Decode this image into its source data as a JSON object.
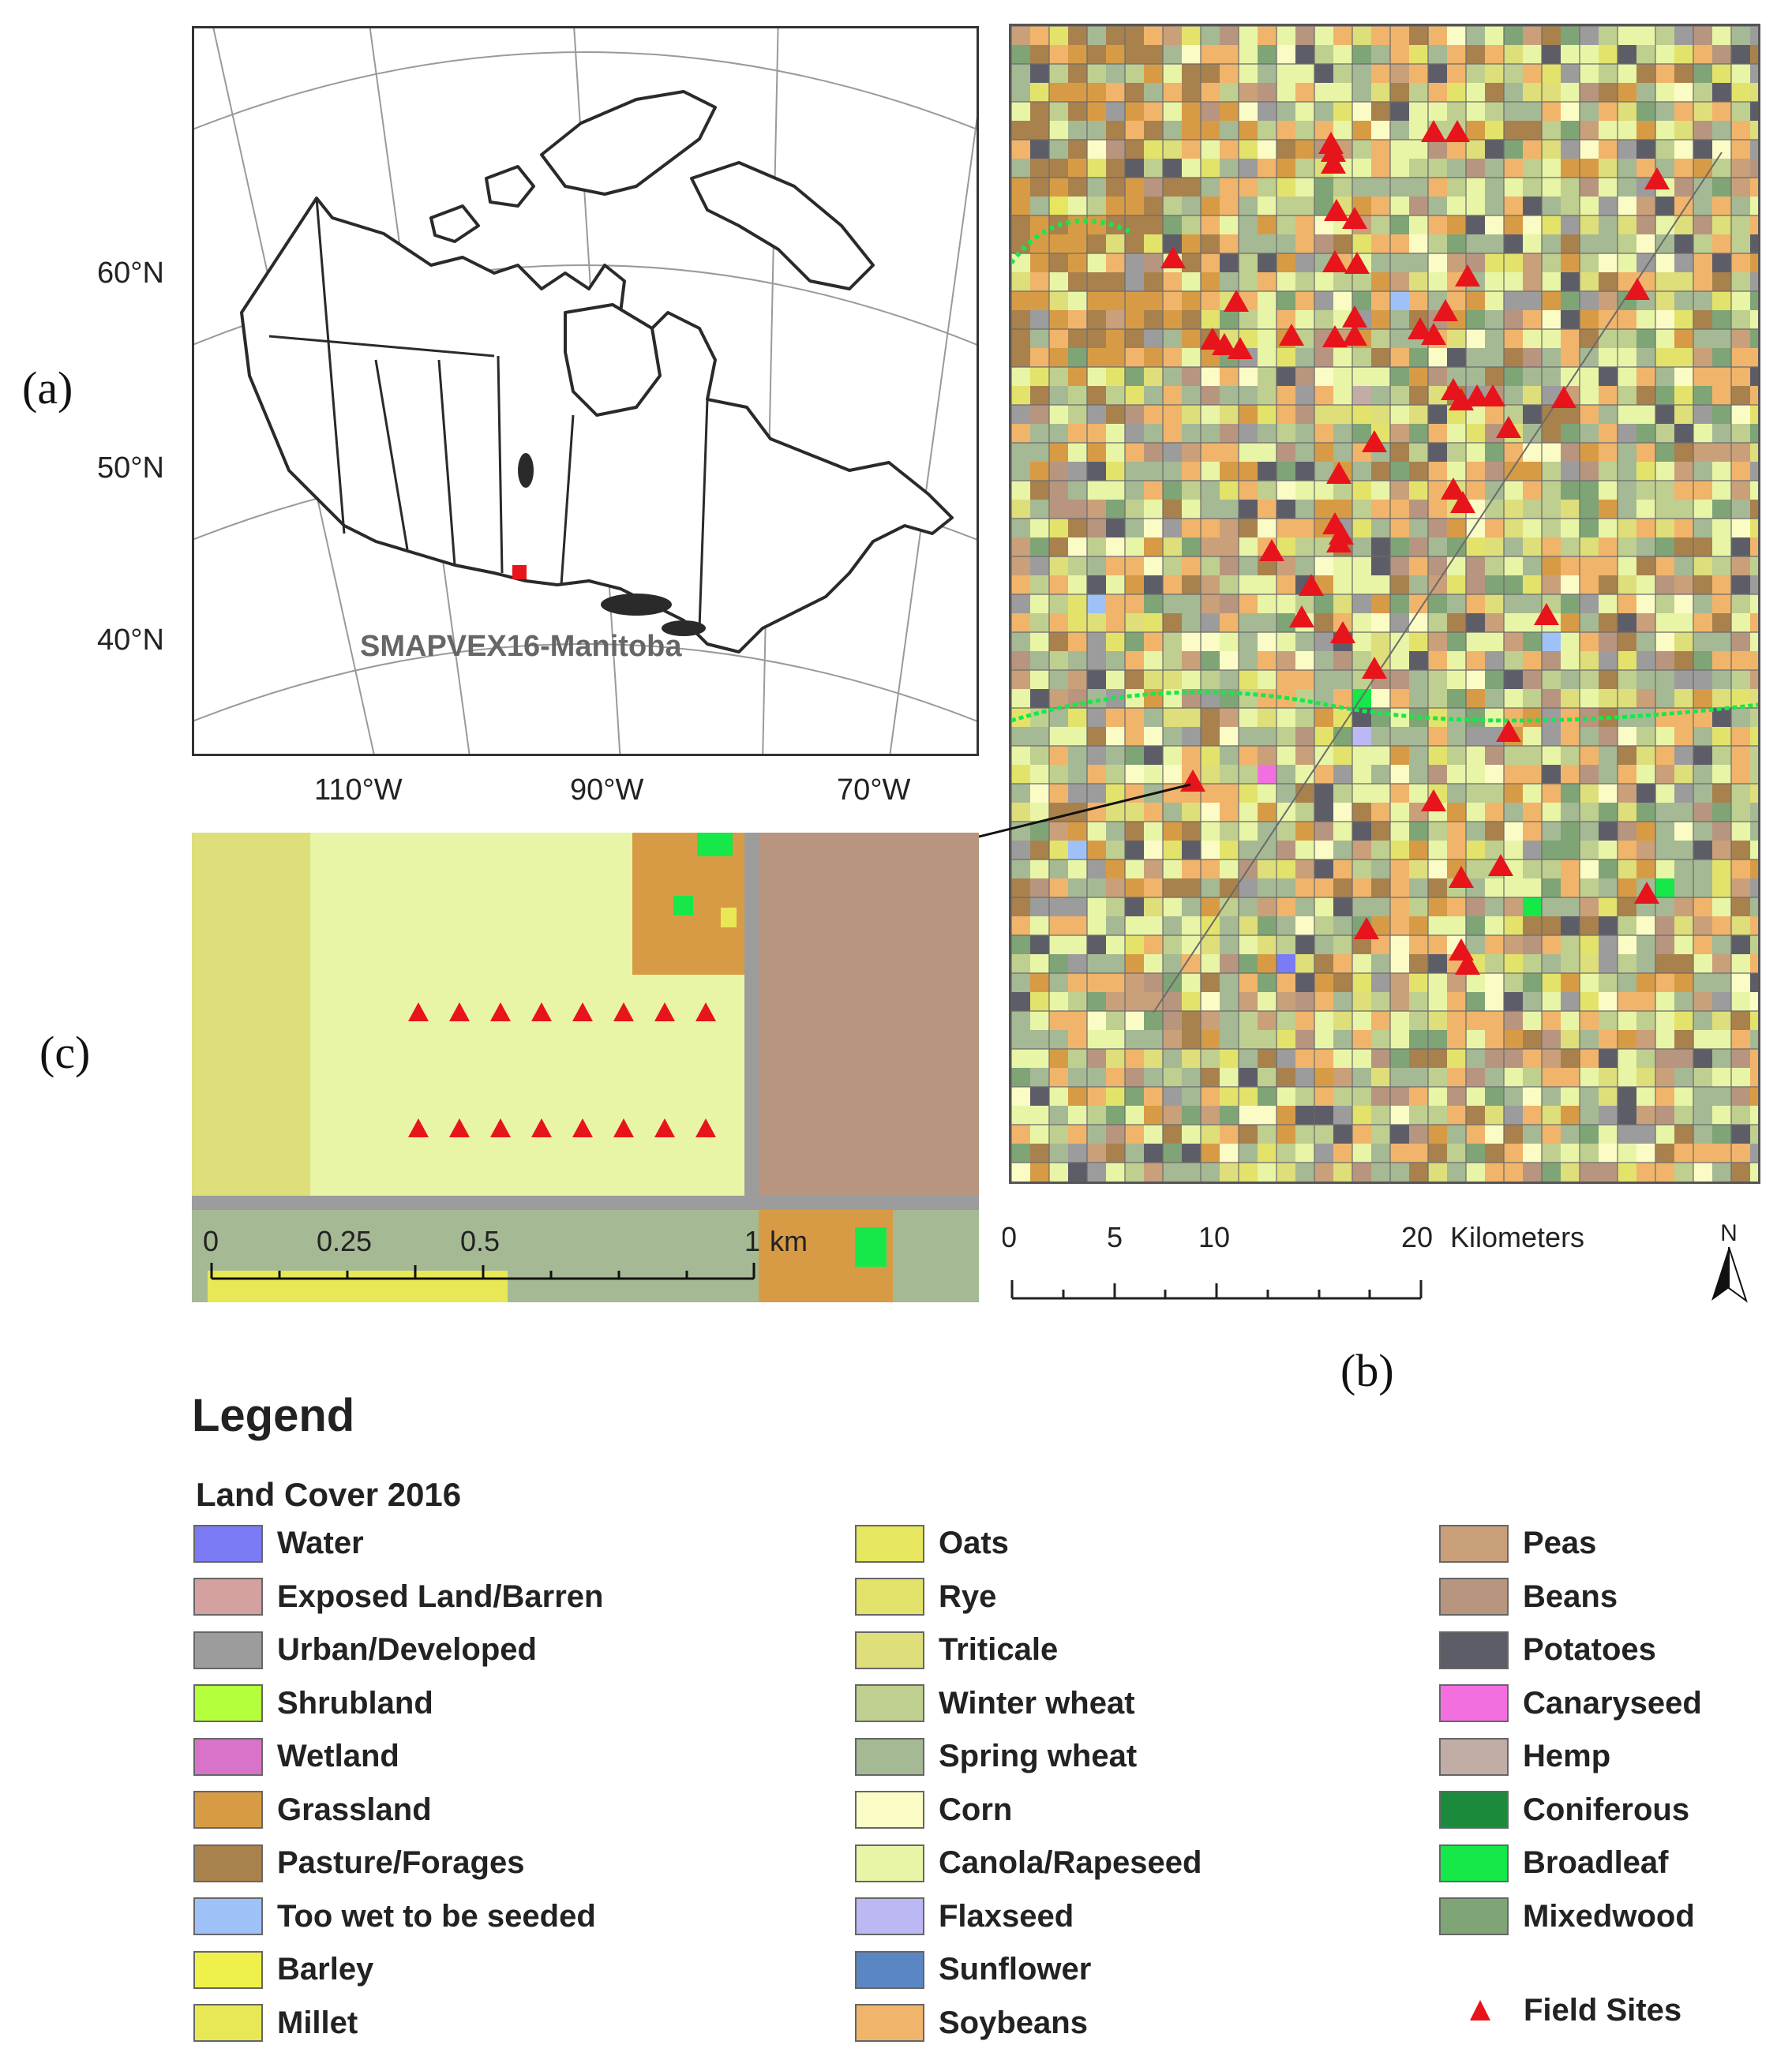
{
  "panels": {
    "a": {
      "letter": "(a)",
      "site_label": "SMAPVEX16-Manitoba",
      "lat_labels": [
        "60°N",
        "50°N",
        "40°N"
      ],
      "lon_labels": [
        "110°W",
        "90°W",
        "70°W"
      ]
    },
    "b": {
      "letter": "(b)",
      "scale_ticks": [
        "0",
        "5",
        "10",
        "20"
      ],
      "scale_unit": "Kilometers",
      "north_label": "N"
    },
    "c": {
      "letter": "(c)",
      "scale_ticks": [
        "0",
        "0.25",
        "0.5",
        "1"
      ],
      "scale_unit": "km"
    }
  },
  "legend": {
    "title": "Legend",
    "subtitle": "Land Cover 2016",
    "columns": [
      [
        {
          "label": "Water",
          "color": "#7b7bf5"
        },
        {
          "label": "Exposed Land/Barren",
          "color": "#d4a0a0"
        },
        {
          "label": "Urban/Developed",
          "color": "#9c9c9c"
        },
        {
          "label": "Shrubland",
          "color": "#b4ff3c"
        },
        {
          "label": "Wetland",
          "color": "#d973c9"
        },
        {
          "label": "Grassland",
          "color": "#d89b45"
        },
        {
          "label": "Pasture/Forages",
          "color": "#a9814c"
        },
        {
          "label": "Too wet to be seeded",
          "color": "#9ec2f7"
        },
        {
          "label": "Barley",
          "color": "#f0f04a"
        },
        {
          "label": "Millet",
          "color": "#e8e857"
        }
      ],
      [
        {
          "label": "Oats",
          "color": "#e6e65f"
        },
        {
          "label": "Rye",
          "color": "#e3e36b"
        },
        {
          "label": "Triticale",
          "color": "#dede7a"
        },
        {
          "label": "Winter wheat",
          "color": "#bfcf8f"
        },
        {
          "label": "Spring wheat",
          "color": "#a5b994"
        },
        {
          "label": "Corn",
          "color": "#fbfbc6"
        },
        {
          "label": "Canola/Rapeseed",
          "color": "#e8f5a6"
        },
        {
          "label": "Flaxseed",
          "color": "#bcb8f3"
        },
        {
          "label": "Sunflower",
          "color": "#5b86c4"
        },
        {
          "label": "Soybeans",
          "color": "#f1b46b"
        }
      ],
      [
        {
          "label": "Peas",
          "color": "#c9a07a"
        },
        {
          "label": "Beans",
          "color": "#b8957e"
        },
        {
          "label": "Potatoes",
          "color": "#5d5d68"
        },
        {
          "label": "Canaryseed",
          "color": "#f36fe0"
        },
        {
          "label": "Hemp",
          "color": "#c1aca6"
        },
        {
          "label": "Coniferous",
          "color": "#1b8a3c"
        },
        {
          "label": "Broadleaf",
          "color": "#16e84a"
        },
        {
          "label": "Mixedwood",
          "color": "#7fa476"
        }
      ]
    ],
    "field_sites_label": "Field Sites",
    "field_sites_color": "#e8141b"
  }
}
